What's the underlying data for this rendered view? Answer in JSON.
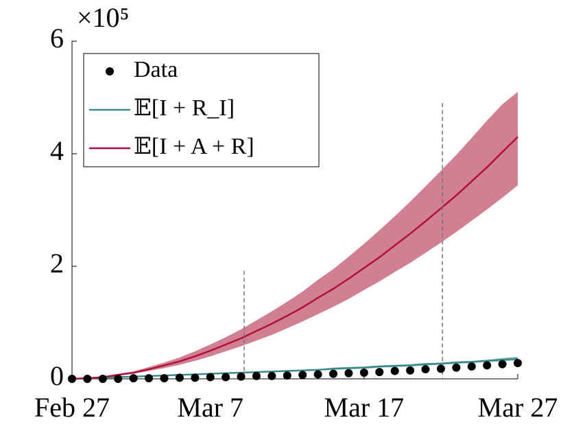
{
  "chart_data": {
    "type": "line",
    "exponent_label": "×10⁵",
    "x": [
      0,
      1,
      2,
      3,
      4,
      5,
      6,
      7,
      8,
      9,
      10,
      11,
      12,
      13,
      14,
      15,
      16,
      17,
      18,
      19,
      20,
      21,
      22,
      23,
      24,
      25,
      26,
      27,
      28,
      29
    ],
    "xlim": [
      0,
      29
    ],
    "xticks": [
      {
        "value": 0,
        "label": "Feb 27"
      },
      {
        "value": 9,
        "label": "Mar 7"
      },
      {
        "value": 19,
        "label": "Mar 17"
      },
      {
        "value": 29,
        "label": "Mar 27"
      }
    ],
    "ylim": [
      0,
      6
    ],
    "yticks": [
      0,
      2,
      4,
      6
    ],
    "vlines": [
      {
        "x": 11.2,
        "y": 1.92
      },
      {
        "x": 24.1,
        "y": 4.9
      }
    ],
    "legend": "upper-left",
    "series": [
      {
        "name": "Data",
        "kind": "scatter",
        "color": "#000000",
        "values": [
          0,
          0,
          0,
          0,
          0.01,
          0.01,
          0.01,
          0.02,
          0.02,
          0.03,
          0.03,
          0.04,
          0.05,
          0.05,
          0.06,
          0.07,
          0.08,
          0.09,
          0.1,
          0.11,
          0.12,
          0.14,
          0.15,
          0.17,
          0.18,
          0.2,
          0.22,
          0.24,
          0.26,
          0.28
        ]
      },
      {
        "name": "𝔼[I + R_I]",
        "kind": "line",
        "color": "#3a8a8c",
        "band_color": "#7fb5b6",
        "values": [
          0,
          0.01,
          0.02,
          0.03,
          0.04,
          0.05,
          0.06,
          0.07,
          0.08,
          0.09,
          0.1,
          0.11,
          0.12,
          0.13,
          0.14,
          0.15,
          0.16,
          0.18,
          0.19,
          0.2,
          0.22,
          0.23,
          0.24,
          0.26,
          0.27,
          0.29,
          0.3,
          0.32,
          0.34,
          0.36
        ],
        "lower": [
          0,
          0,
          0.01,
          0.02,
          0.03,
          0.04,
          0.05,
          0.06,
          0.07,
          0.08,
          0.09,
          0.1,
          0.11,
          0.12,
          0.13,
          0.14,
          0.15,
          0.16,
          0.17,
          0.18,
          0.2,
          0.21,
          0.22,
          0.24,
          0.25,
          0.27,
          0.28,
          0.3,
          0.31,
          0.33
        ],
        "upper": [
          0,
          0.02,
          0.03,
          0.04,
          0.05,
          0.06,
          0.07,
          0.08,
          0.09,
          0.1,
          0.11,
          0.12,
          0.13,
          0.14,
          0.15,
          0.16,
          0.17,
          0.2,
          0.21,
          0.22,
          0.24,
          0.25,
          0.26,
          0.28,
          0.29,
          0.31,
          0.32,
          0.34,
          0.37,
          0.39
        ]
      },
      {
        "name": "𝔼[I + A + R]",
        "kind": "line",
        "color": "#b0113a",
        "band_color": "#c9687f",
        "values": [
          0,
          0.01,
          0.03,
          0.07,
          0.11,
          0.17,
          0.24,
          0.31,
          0.4,
          0.5,
          0.61,
          0.72,
          0.85,
          0.98,
          1.12,
          1.27,
          1.44,
          1.6,
          1.78,
          1.97,
          2.16,
          2.37,
          2.58,
          2.8,
          3.03,
          3.26,
          3.51,
          3.76,
          4.03,
          4.3
        ],
        "lower": [
          0,
          0.01,
          0.02,
          0.06,
          0.09,
          0.14,
          0.19,
          0.25,
          0.32,
          0.4,
          0.49,
          0.58,
          0.68,
          0.78,
          0.9,
          1.02,
          1.15,
          1.28,
          1.42,
          1.58,
          1.73,
          1.9,
          2.06,
          2.24,
          2.42,
          2.61,
          2.81,
          3.01,
          3.22,
          3.44
        ],
        "upper": [
          0,
          0.01,
          0.04,
          0.09,
          0.13,
          0.21,
          0.29,
          0.38,
          0.49,
          0.61,
          0.74,
          0.88,
          1.04,
          1.2,
          1.37,
          1.55,
          1.76,
          1.95,
          2.17,
          2.4,
          2.64,
          2.89,
          3.15,
          3.42,
          3.7,
          3.98,
          4.28,
          4.59,
          4.88,
          5.1
        ]
      }
    ]
  }
}
